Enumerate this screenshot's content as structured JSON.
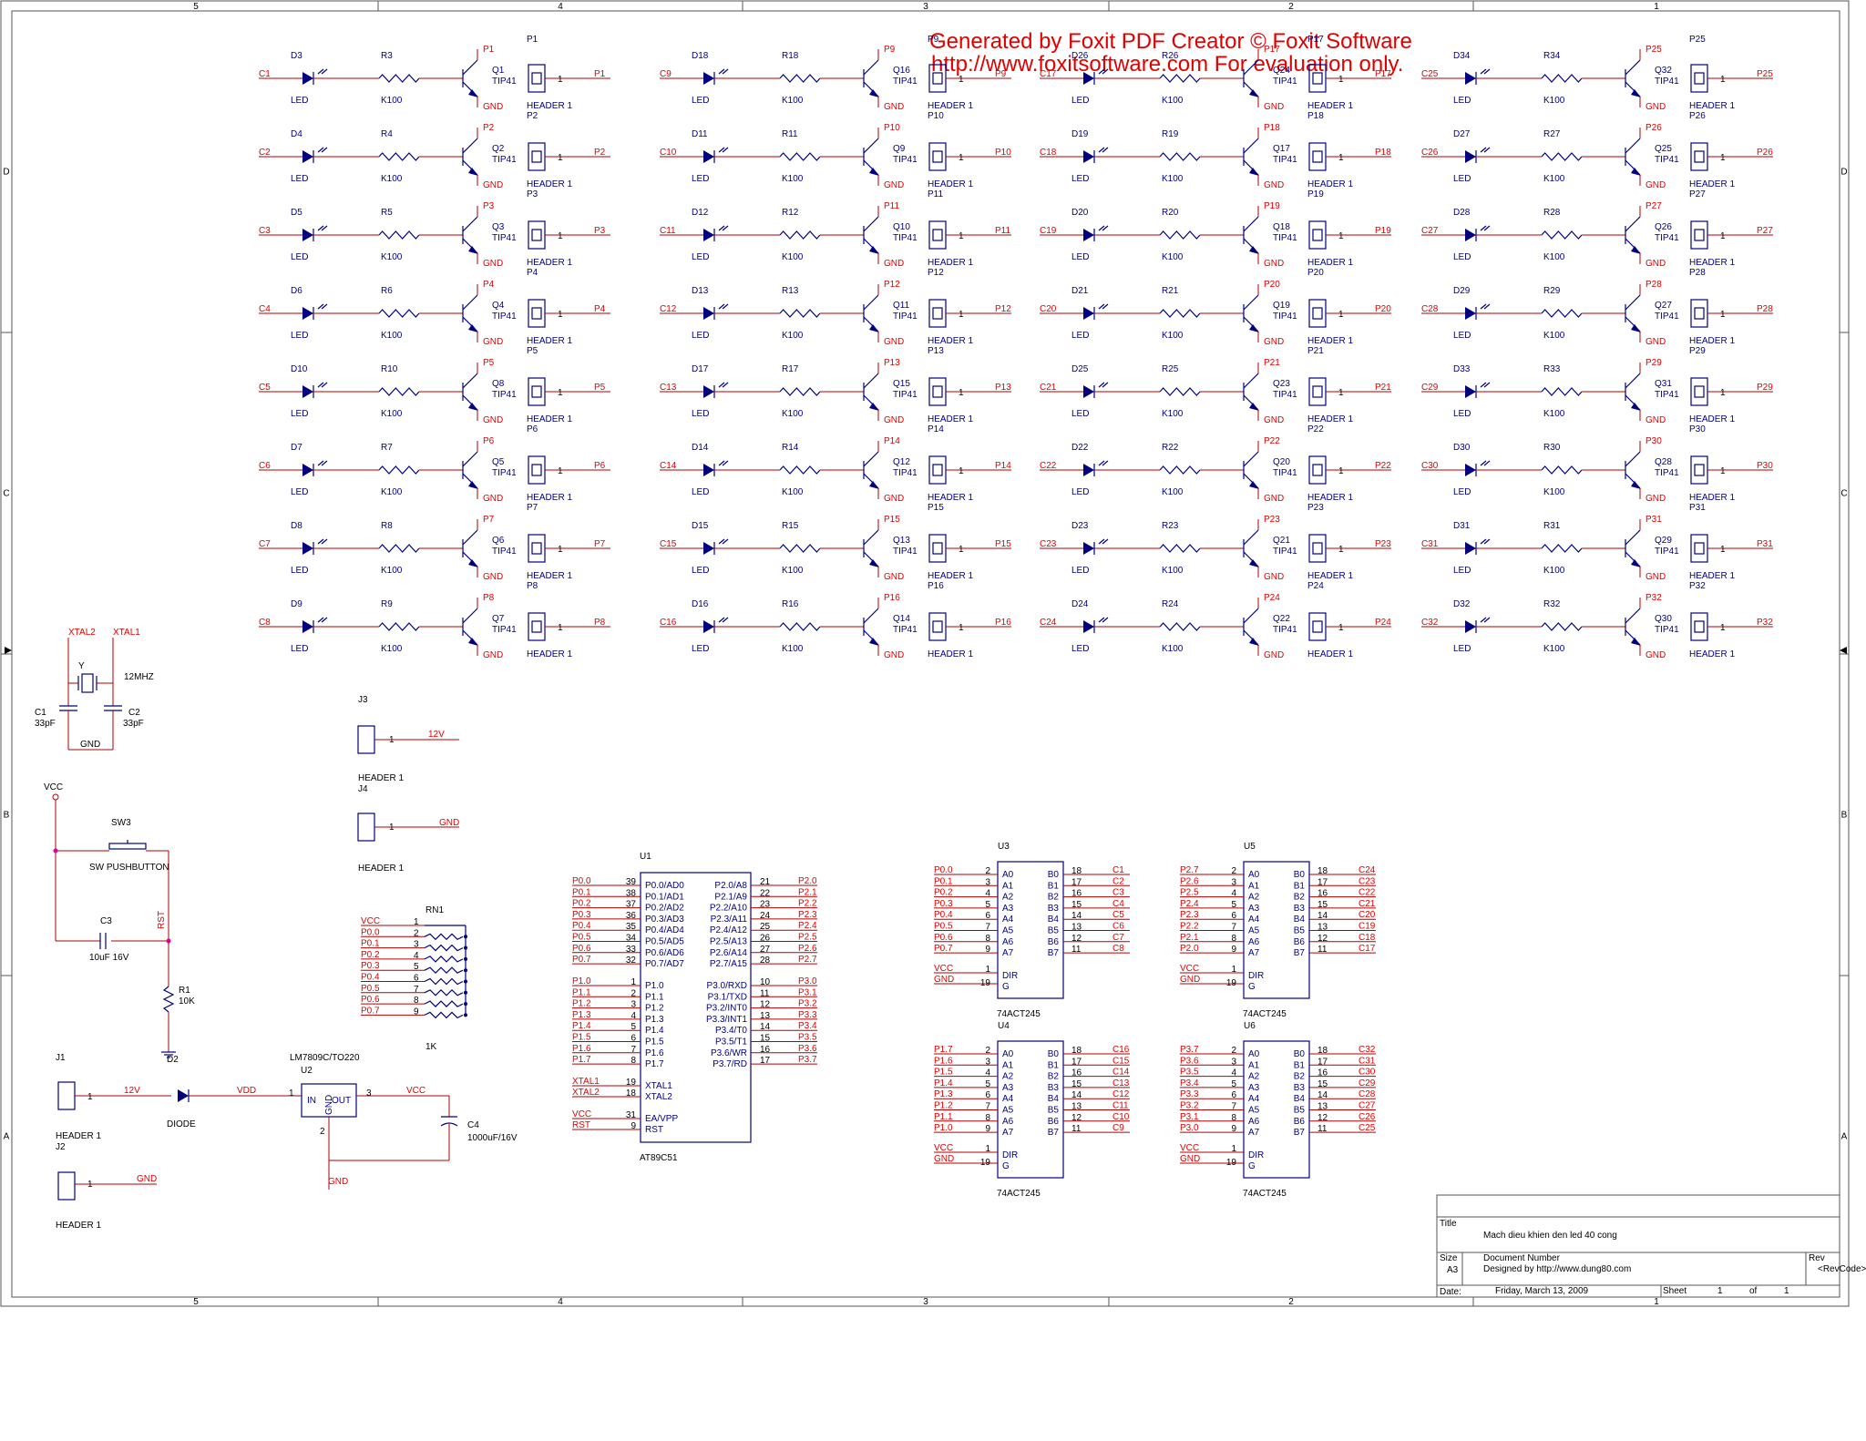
{
  "frame": {
    "col_labels": [
      "5",
      "4",
      "3",
      "2",
      "1"
    ],
    "row_labels": [
      "D",
      "C",
      "B",
      "A"
    ]
  },
  "watermark": {
    "line1": "Generated by Foxit PDF Creator © Foxit Software",
    "line2": "http://www.foxitsoftware.com   For evaluation only."
  },
  "driver_columns": [
    {
      "ports": [
        "P1",
        "P2",
        "P3",
        "P4",
        "P5",
        "P6",
        "P7",
        "P8"
      ],
      "nets": [
        "C1",
        "C2",
        "C3",
        "C4",
        "C5",
        "C6",
        "C7",
        "C8"
      ],
      "diodes": [
        "D3",
        "D4",
        "D5",
        "D6",
        "D10",
        "D7",
        "D8",
        "D9"
      ],
      "resistors": [
        "R3",
        "R4",
        "R5",
        "R6",
        "R10",
        "R7",
        "R8",
        "R9"
      ],
      "transistors": [
        "Q1",
        "Q2",
        "Q3",
        "Q4",
        "Q8",
        "Q5",
        "Q6",
        "Q7"
      ]
    },
    {
      "ports": [
        "P9",
        "P10",
        "P11",
        "P12",
        "P13",
        "P14",
        "P15",
        "P16"
      ],
      "nets": [
        "C9",
        "C10",
        "C11",
        "C12",
        "C13",
        "C14",
        "C15",
        "C16"
      ],
      "diodes": [
        "D18",
        "D11",
        "D12",
        "D13",
        "D17",
        "D14",
        "D15",
        "D16"
      ],
      "resistors": [
        "R18",
        "R11",
        "R12",
        "R13",
        "R17",
        "R14",
        "R15",
        "R16"
      ],
      "transistors": [
        "Q16",
        "Q9",
        "Q10",
        "Q11",
        "Q15",
        "Q12",
        "Q13",
        "Q14"
      ]
    },
    {
      "ports": [
        "P17",
        "P18",
        "P19",
        "P20",
        "P21",
        "P22",
        "P23",
        "P24"
      ],
      "nets": [
        "C17",
        "C18",
        "C19",
        "C20",
        "C21",
        "C22",
        "C23",
        "C24"
      ],
      "diodes": [
        "D26",
        "D19",
        "D20",
        "D21",
        "D25",
        "D22",
        "D23",
        "D24"
      ],
      "resistors": [
        "R26",
        "R19",
        "R20",
        "R21",
        "R25",
        "R22",
        "R23",
        "R24"
      ],
      "transistors": [
        "Q24",
        "Q17",
        "Q18",
        "Q19",
        "Q23",
        "Q20",
        "Q21",
        "Q22"
      ]
    },
    {
      "ports": [
        "P25",
        "P26",
        "P27",
        "P28",
        "P29",
        "P30",
        "P31",
        "P32"
      ],
      "nets": [
        "C25",
        "C26",
        "C27",
        "C28",
        "C29",
        "C30",
        "C31",
        "C32"
      ],
      "diodes": [
        "D34",
        "D27",
        "D28",
        "D29",
        "D33",
        "D30",
        "D31",
        "D32"
      ],
      "resistors": [
        "R34",
        "R27",
        "R28",
        "R29",
        "R33",
        "R30",
        "R31",
        "R32"
      ],
      "transistors": [
        "Q32",
        "Q25",
        "Q26",
        "Q27",
        "Q31",
        "Q28",
        "Q29",
        "Q30"
      ]
    }
  ],
  "part_values": {
    "led": "LED",
    "resistor": "K100",
    "transistor": "TIP41",
    "gnd": "GND",
    "header": "HEADER 1",
    "header_pin": "1"
  },
  "oscillator": {
    "net1": "XTAL2",
    "net2": "XTAL1",
    "crystal": "Y",
    "freq": "12MHZ",
    "c1": "C1",
    "c1_val": "33pF",
    "c2": "C2",
    "c2_val": "33pF",
    "gnd": "GND"
  },
  "reset": {
    "vcc": "VCC",
    "sw": "SW3",
    "sw_val": "SW PUSHBUTTON",
    "rst": "RST",
    "c3": "C3",
    "c3_val": "10uF 16V",
    "r1": "R1",
    "r1_val": "10K"
  },
  "power_headers": {
    "j3": "J3",
    "j3_net": "12V",
    "j4": "J4",
    "j4_net": "GND",
    "header": "HEADER 1",
    "pin": "1"
  },
  "rn1": {
    "name": "RN1",
    "value": "1K",
    "nets": [
      "VCC",
      "P0.0",
      "P0.1",
      "P0.2",
      "P0.3",
      "P0.4",
      "P0.5",
      "P0.6",
      "P0.7"
    ],
    "pins": [
      "1",
      "2",
      "3",
      "4",
      "5",
      "6",
      "7",
      "8",
      "9"
    ]
  },
  "psu": {
    "j1": "J1",
    "j1_net": "12V",
    "j1_pin": "1",
    "header": "HEADER 1",
    "j2": "J2",
    "j2_net": "GND",
    "j2_pin": "1",
    "d2": "D2",
    "diode": "DIODE",
    "vdd": "VDD",
    "reg": "LM7809C/TO220",
    "u2": "U2",
    "in": "IN",
    "out": "OUT",
    "gnd_pin": "GND",
    "pin1": "1",
    "pin2": "2",
    "pin3": "3",
    "vcc": "VCC",
    "gnd": "GND",
    "c4": "C4",
    "c4_val": "1000uF/16V"
  },
  "mcu": {
    "name": "U1",
    "part": "AT89C51",
    "left": [
      {
        "net": "P0.0",
        "pin": "39",
        "fn": "P0.0/AD0"
      },
      {
        "net": "P0.1",
        "pin": "38",
        "fn": "P0.1/AD1"
      },
      {
        "net": "P0.2",
        "pin": "37",
        "fn": "P0.2/AD2"
      },
      {
        "net": "P0.3",
        "pin": "36",
        "fn": "P0.3/AD3"
      },
      {
        "net": "P0.4",
        "pin": "35",
        "fn": "P0.4/AD4"
      },
      {
        "net": "P0.5",
        "pin": "34",
        "fn": "P0.5/AD5"
      },
      {
        "net": "P0.6",
        "pin": "33",
        "fn": "P0.6/AD6"
      },
      {
        "net": "P0.7",
        "pin": "32",
        "fn": "P0.7/AD7"
      },
      {
        "net": "P1.0",
        "pin": "1",
        "fn": "P1.0"
      },
      {
        "net": "P1.1",
        "pin": "2",
        "fn": "P1.1"
      },
      {
        "net": "P1.2",
        "pin": "3",
        "fn": "P1.2"
      },
      {
        "net": "P1.3",
        "pin": "4",
        "fn": "P1.3"
      },
      {
        "net": "P1.4",
        "pin": "5",
        "fn": "P1.4"
      },
      {
        "net": "P1.5",
        "pin": "6",
        "fn": "P1.5"
      },
      {
        "net": "P1.6",
        "pin": "7",
        "fn": "P1.6"
      },
      {
        "net": "P1.7",
        "pin": "8",
        "fn": "P1.7"
      },
      {
        "net": "XTAL1",
        "pin": "19",
        "fn": "XTAL1"
      },
      {
        "net": "XTAL2",
        "pin": "18",
        "fn": "XTAL2"
      },
      {
        "net": "VCC",
        "pin": "31",
        "fn": "EA/VPP"
      },
      {
        "net": "RST",
        "pin": "9",
        "fn": "RST"
      }
    ],
    "right": [
      {
        "net": "P2.0",
        "pin": "21",
        "fn": "P2.0/A8"
      },
      {
        "net": "P2.1",
        "pin": "22",
        "fn": "P2.1/A9"
      },
      {
        "net": "P2.2",
        "pin": "23",
        "fn": "P2.2/A10"
      },
      {
        "net": "P2.3",
        "pin": "24",
        "fn": "P2.3/A11"
      },
      {
        "net": "P2.4",
        "pin": "25",
        "fn": "P2.4/A12"
      },
      {
        "net": "P2.5",
        "pin": "26",
        "fn": "P2.5/A13"
      },
      {
        "net": "P2.6",
        "pin": "27",
        "fn": "P2.6/A14"
      },
      {
        "net": "P2.7",
        "pin": "28",
        "fn": "P2.7/A15"
      },
      {
        "net": "P3.0",
        "pin": "10",
        "fn": "P3.0/RXD"
      },
      {
        "net": "P3.1",
        "pin": "11",
        "fn": "P3.1/TXD"
      },
      {
        "net": "P3.2",
        "pin": "12",
        "fn": "P3.2/INT0"
      },
      {
        "net": "P3.3",
        "pin": "13",
        "fn": "P3.3/INT1"
      },
      {
        "net": "P3.4",
        "pin": "14",
        "fn": "P3.4/T0"
      },
      {
        "net": "P3.5",
        "pin": "15",
        "fn": "P3.5/T1"
      },
      {
        "net": "P3.6",
        "pin": "16",
        "fn": "P3.6/WR"
      },
      {
        "net": "P3.7",
        "pin": "17",
        "fn": "P3.7/RD"
      }
    ]
  },
  "buffers": [
    {
      "name": "U3",
      "part": "74ACT245",
      "in_nets": [
        "P0.0",
        "P0.1",
        "P0.2",
        "P0.3",
        "P0.4",
        "P0.5",
        "P0.6",
        "P0.7"
      ],
      "out_nets": [
        "C1",
        "C2",
        "C3",
        "C4",
        "C5",
        "C6",
        "C7",
        "C8"
      ]
    },
    {
      "name": "U5",
      "part": "74ACT245",
      "in_nets": [
        "P2.7",
        "P2.6",
        "P2.5",
        "P2.4",
        "P2.3",
        "P2.2",
        "P2.1",
        "P2.0"
      ],
      "out_nets": [
        "C24",
        "C23",
        "C22",
        "C21",
        "C20",
        "C19",
        "C18",
        "C17"
      ]
    },
    {
      "name": "U4",
      "part": "74ACT245",
      "in_nets": [
        "P1.7",
        "P1.6",
        "P1.5",
        "P1.4",
        "P1.3",
        "P1.2",
        "P1.1",
        "P1.0"
      ],
      "out_nets": [
        "C16",
        "C15",
        "C14",
        "C13",
        "C12",
        "C11",
        "C10",
        "C9"
      ]
    },
    {
      "name": "U6",
      "part": "74ACT245",
      "in_nets": [
        "P3.7",
        "P3.6",
        "P3.5",
        "P3.4",
        "P3.3",
        "P3.2",
        "P3.1",
        "P3.0"
      ],
      "out_nets": [
        "C32",
        "C31",
        "C30",
        "C29",
        "C28",
        "C27",
        "C26",
        "C25"
      ]
    }
  ],
  "buffer_pins": {
    "a": [
      "A0",
      "A1",
      "A2",
      "A3",
      "A4",
      "A5",
      "A6",
      "A7"
    ],
    "b": [
      "B0",
      "B1",
      "B2",
      "B3",
      "B4",
      "B5",
      "B6",
      "B7"
    ],
    "in_pins": [
      "2",
      "3",
      "4",
      "5",
      "6",
      "7",
      "8",
      "9"
    ],
    "out_pins": [
      "18",
      "17",
      "16",
      "15",
      "14",
      "13",
      "12",
      "11"
    ],
    "vcc": "VCC",
    "gnd": "GND",
    "dir": "DIR",
    "g": "G",
    "dir_pin": "1",
    "g_pin": "19"
  },
  "title_block": {
    "title_label": "Title",
    "title": "Mach dieu khien den led 40 cong",
    "size_label": "Size",
    "size": "A3",
    "docnum_label": "Document Number",
    "designer": "Designed by http://www.dung80.com",
    "rev_label": "Rev",
    "rev": "<RevCode>",
    "date_label": "Date:",
    "date": "Friday, March 13, 2009",
    "sheet_label": "Sheet",
    "sheet": "1",
    "of_label": "of",
    "of": "1"
  }
}
